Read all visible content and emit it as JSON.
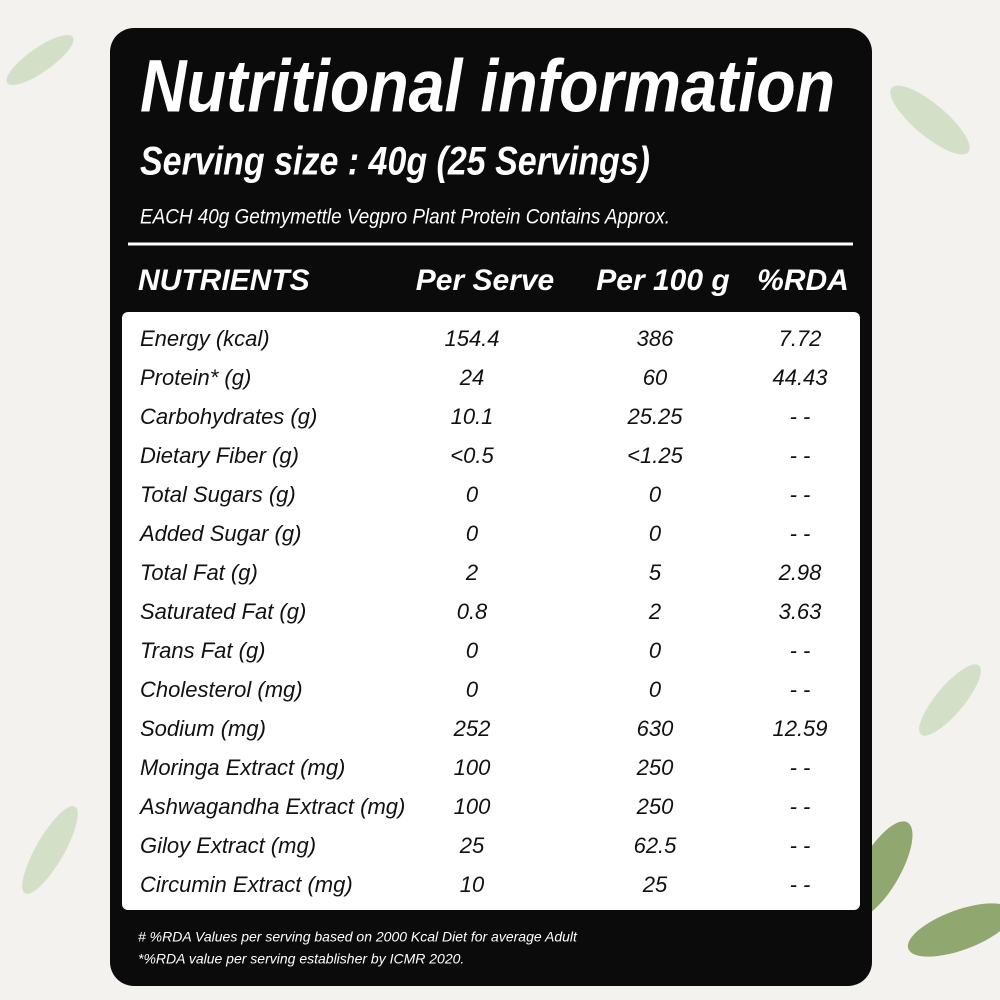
{
  "header": {
    "title": "Nutritional information",
    "serving_size": "Serving size : 40g (25 Servings)",
    "subtitle": "EACH 40g Getmymettle Vegpro Plant Protein Contains Approx."
  },
  "table": {
    "columns": [
      "NUTRIENTS",
      "Per Serve",
      "Per 100 g",
      "%RDA"
    ],
    "rows": [
      [
        "Energy (kcal)",
        "154.4",
        "386",
        "7.72"
      ],
      [
        "Protein* (g)",
        "24",
        "60",
        "44.43"
      ],
      [
        "Carbohydrates (g)",
        "10.1",
        "25.25",
        "- -"
      ],
      [
        "Dietary Fiber (g)",
        "<0.5",
        "<1.25",
        "- -"
      ],
      [
        "Total Sugars (g)",
        "0",
        "0",
        "- -"
      ],
      [
        "Added Sugar (g)",
        "0",
        "0",
        "- -"
      ],
      [
        "Total Fat (g)",
        "2",
        "5",
        "2.98"
      ],
      [
        "Saturated Fat (g)",
        "0.8",
        "2",
        "3.63"
      ],
      [
        "Trans Fat (g)",
        "0",
        "0",
        "- -"
      ],
      [
        "Cholesterol (mg)",
        "0",
        "0",
        "- -"
      ],
      [
        "Sodium (mg)",
        "252",
        "630",
        "12.59"
      ],
      [
        "Moringa Extract (mg)",
        "100",
        "250",
        "- -"
      ],
      [
        "Ashwagandha Extract (mg)",
        "100",
        "250",
        "- -"
      ],
      [
        "Giloy Extract (mg)",
        "25",
        "62.5",
        "- -"
      ],
      [
        "Circumin Extract (mg)",
        "10",
        "25",
        "- -"
      ]
    ]
  },
  "footnotes": [
    "# %RDA Values per serving based on 2000 Kcal Diet for average Adult",
    "*%RDA value per serving establisher by ICMR 2020."
  ]
}
